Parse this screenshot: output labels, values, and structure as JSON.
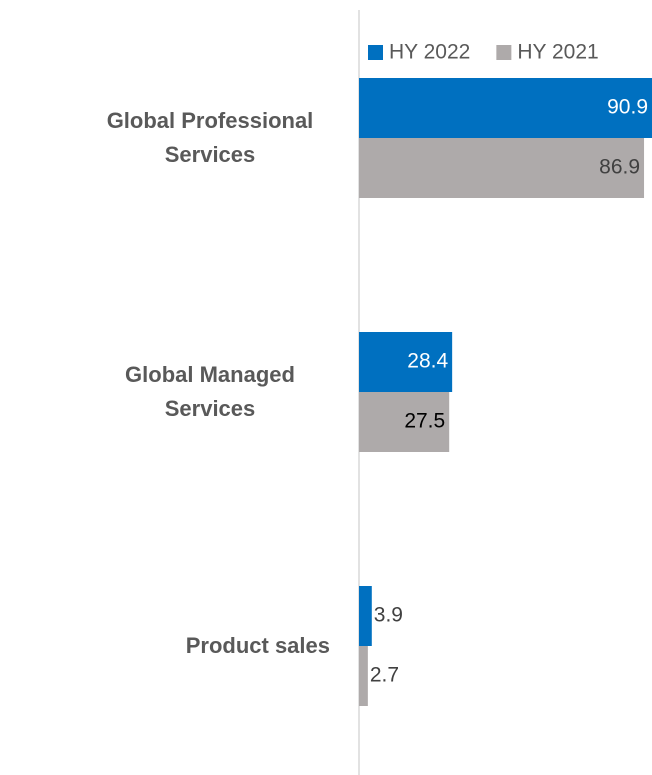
{
  "chart_data": {
    "type": "barh",
    "categories": [
      "Global Professional Services",
      "Global Managed Services",
      "Product sales"
    ],
    "series": [
      {
        "name": "HY 2022",
        "color": "#0070c0",
        "values": [
          90.9,
          28.4,
          3.9
        ]
      },
      {
        "name": "HY 2021",
        "color": "#aeaaaa",
        "values": [
          86.9,
          27.5,
          2.7
        ]
      }
    ],
    "legend": "top-right"
  }
}
